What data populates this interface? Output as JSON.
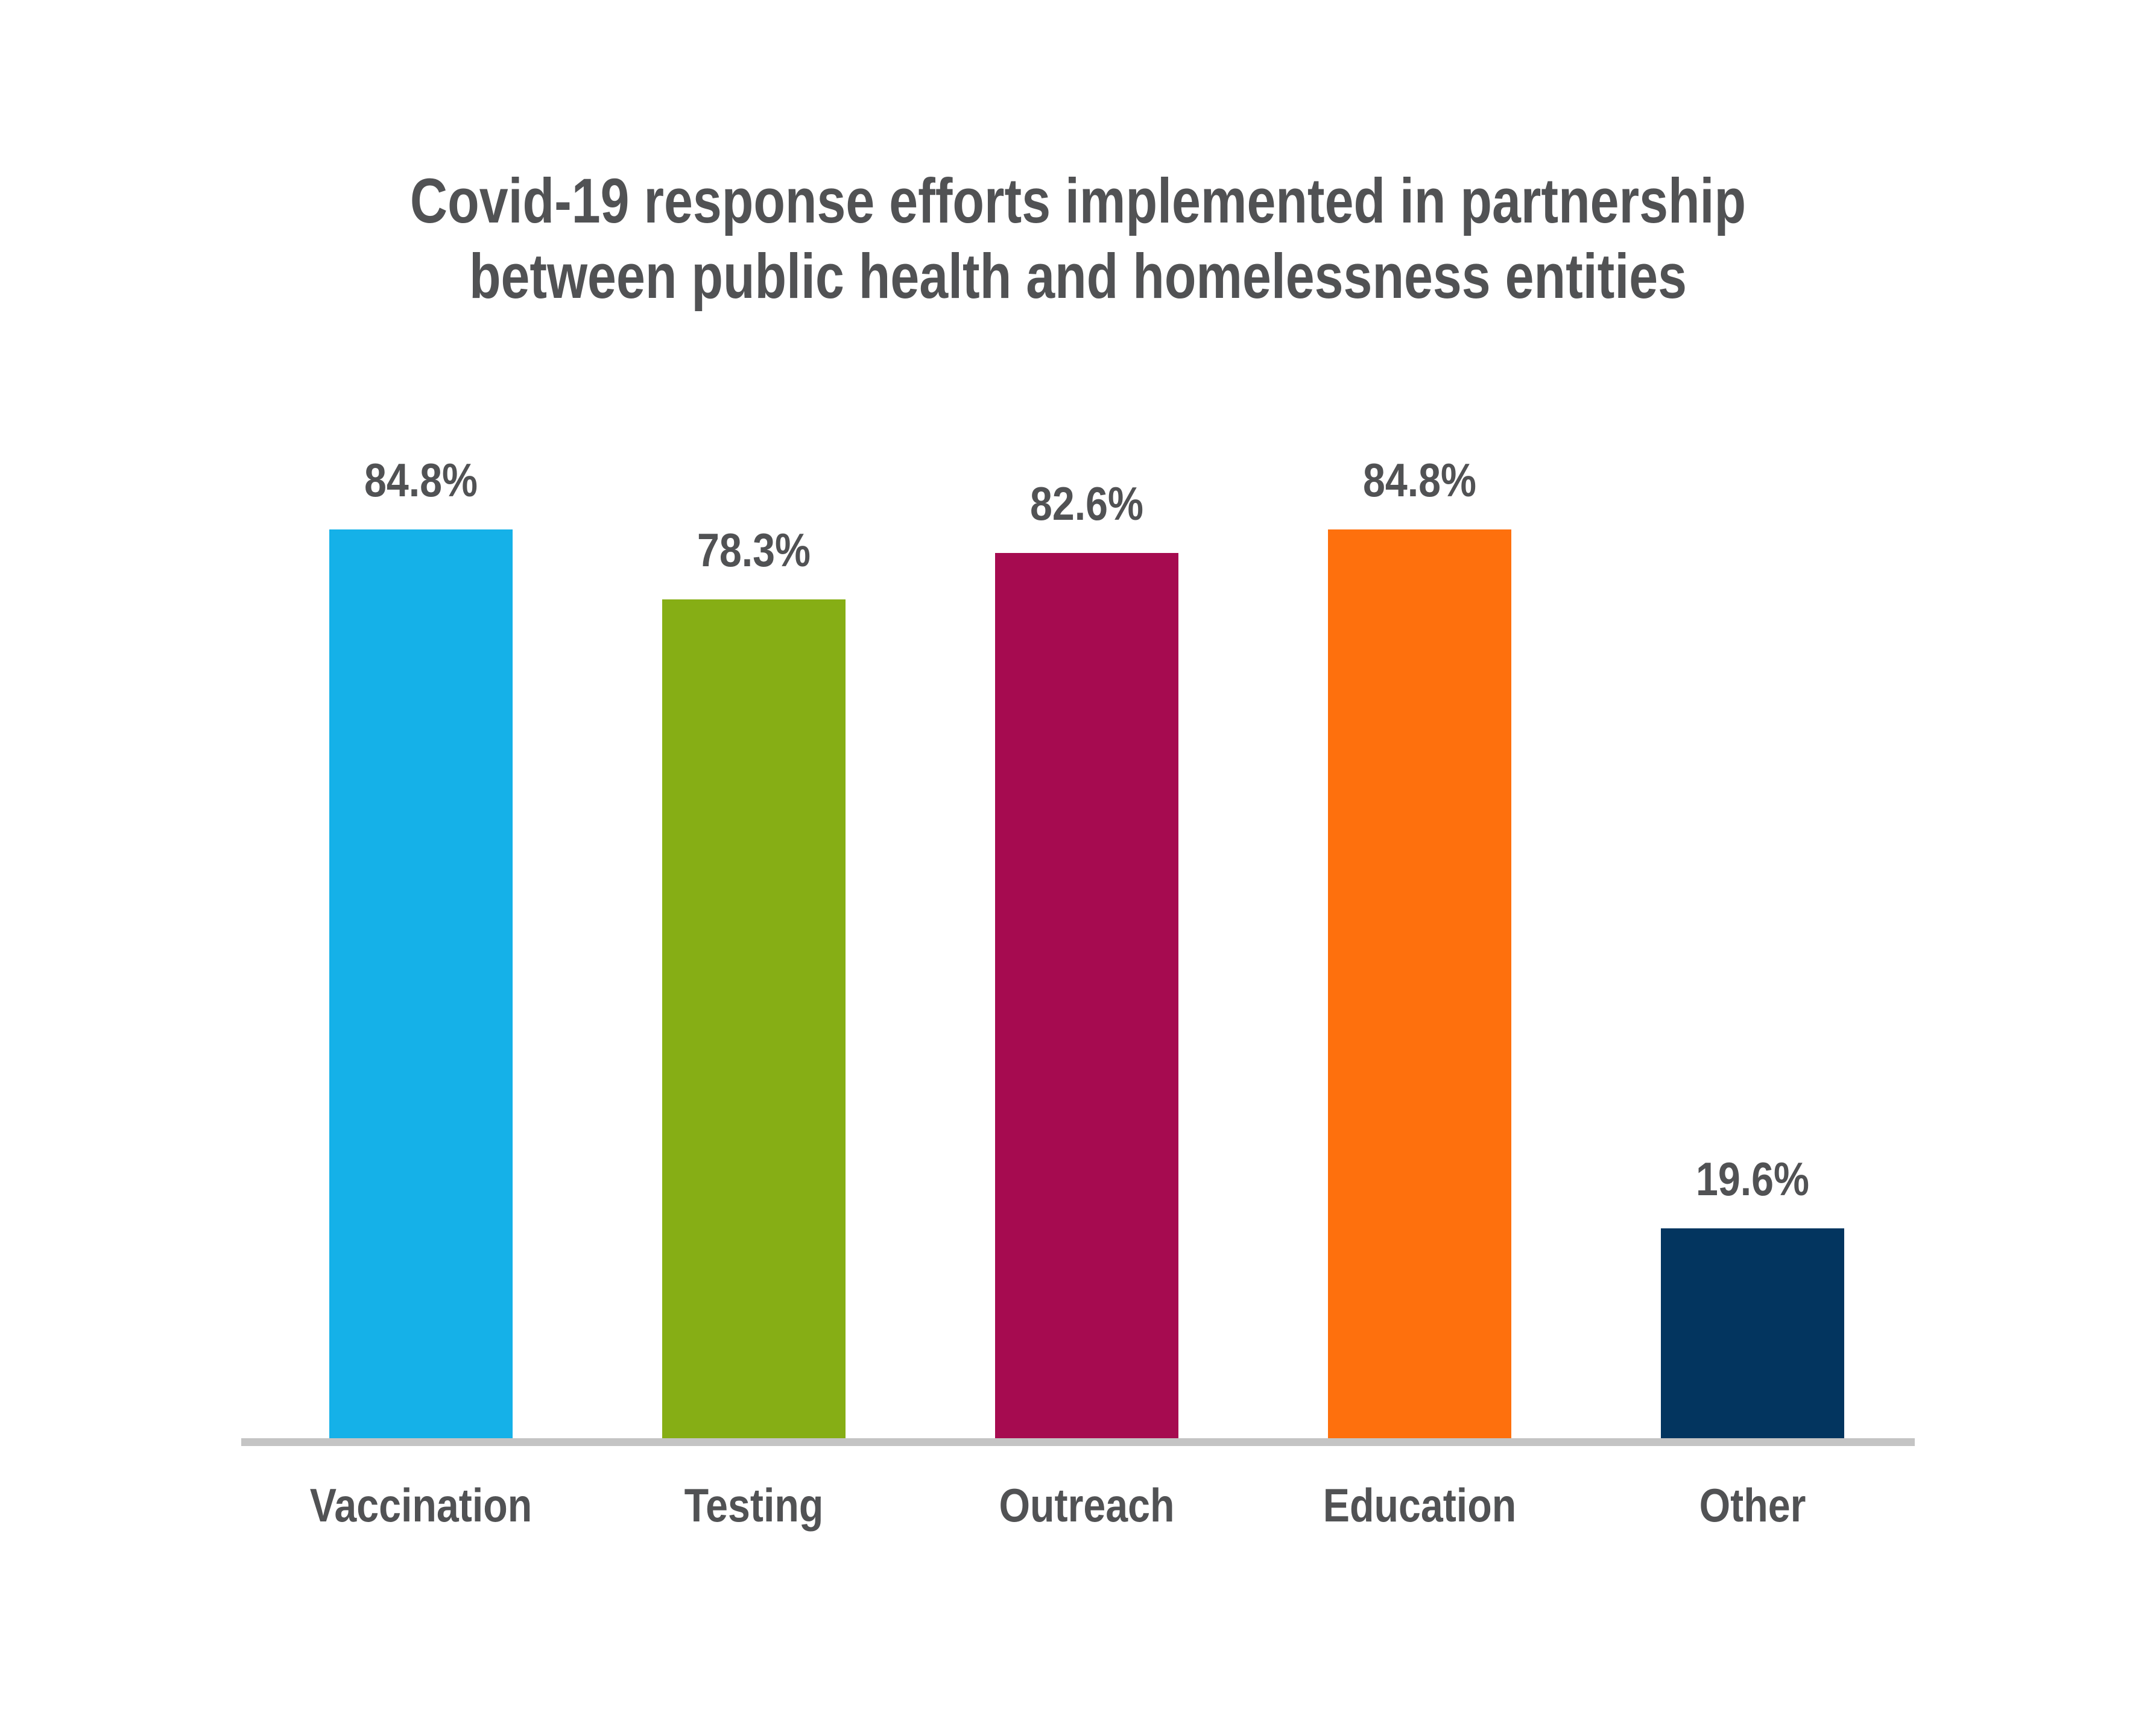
{
  "page": {
    "background": "#FFFFFF"
  },
  "header": {
    "title_line1": "Covid-19 response efforts implemented in partnership",
    "title_line2": "between public health and homelessness entities"
  },
  "chart_data": {
    "type": "bar",
    "title": "Covid-19 response efforts implemented in partnership between public health and homelessness entities",
    "categories": [
      "Vaccination",
      "Testing",
      "Outreach",
      "Education",
      "Other"
    ],
    "values": [
      84.8,
      78.3,
      82.6,
      84.8,
      19.6
    ],
    "value_labels": [
      "84.8%",
      "78.3%",
      "82.6%",
      "84.8%",
      "19.6%"
    ],
    "series_colors": [
      "#15B1E8",
      "#86AE15",
      "#A60B50",
      "#FE700D",
      "#03355F"
    ],
    "xlabel": "",
    "ylabel": "",
    "ylim": [
      0,
      100
    ],
    "grid": false,
    "legend": "none",
    "axis_line_color": "#C4C4C4",
    "label_color": "#515254",
    "title_color": "#515254"
  }
}
